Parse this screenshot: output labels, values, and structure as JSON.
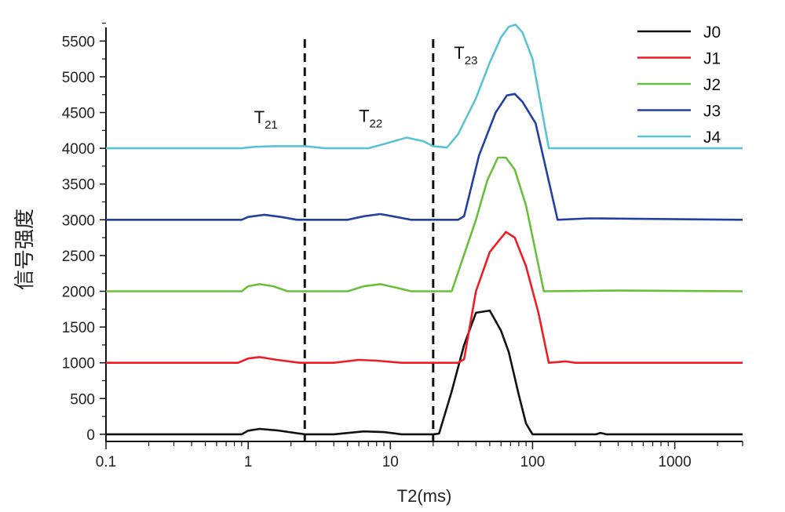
{
  "chart_data": {
    "type": "line",
    "xlabel": "T2(ms)",
    "ylabel": "信号强度",
    "xscale": "log",
    "xlim": [
      0.1,
      3000
    ],
    "ylim": [
      -100,
      5800
    ],
    "x_ticks": [
      0.1,
      1,
      10,
      100,
      1000
    ],
    "x_tick_labels": [
      "0.1",
      "1",
      "10",
      "100",
      "1000"
    ],
    "y_ticks": [
      0,
      500,
      1000,
      1500,
      2000,
      2500,
      3000,
      3500,
      4000,
      4500,
      5000,
      5500
    ],
    "y_tick_labels": [
      "0",
      "500",
      "1000",
      "1500",
      "2000",
      "2500",
      "3000",
      "3500",
      "4000",
      "4500",
      "5000",
      "5500"
    ],
    "grid": false,
    "legend_position": "top-right",
    "dividers": [
      2.5,
      20
    ],
    "annotations": [
      {
        "main": "T",
        "sub": "21",
        "x": 1.1,
        "y": 4350
      },
      {
        "main": "T",
        "sub": "22",
        "x": 6.0,
        "y": 4370
      },
      {
        "main": "T",
        "sub": "23",
        "x": 28,
        "y": 5250
      }
    ],
    "series": [
      {
        "name": "J0",
        "color": "#111111",
        "points": [
          [
            0.1,
            0
          ],
          [
            0.9,
            0
          ],
          [
            1.0,
            50
          ],
          [
            1.2,
            75
          ],
          [
            1.6,
            55
          ],
          [
            2.5,
            0
          ],
          [
            4,
            0
          ],
          [
            6.5,
            40
          ],
          [
            9,
            30
          ],
          [
            12,
            0
          ],
          [
            20,
            0
          ],
          [
            22,
            10
          ],
          [
            27,
            600
          ],
          [
            33,
            1250
          ],
          [
            40,
            1700
          ],
          [
            50,
            1730
          ],
          [
            60,
            1450
          ],
          [
            68,
            1150
          ],
          [
            80,
            550
          ],
          [
            90,
            150
          ],
          [
            100,
            0
          ],
          [
            280,
            0
          ],
          [
            300,
            20
          ],
          [
            330,
            0
          ],
          [
            3000,
            0
          ]
        ]
      },
      {
        "name": "J1",
        "color": "#ee1c25",
        "points": [
          [
            0.1,
            1000
          ],
          [
            0.85,
            1000
          ],
          [
            1.0,
            1060
          ],
          [
            1.2,
            1080
          ],
          [
            1.6,
            1040
          ],
          [
            2.3,
            1000
          ],
          [
            4,
            1000
          ],
          [
            6,
            1040
          ],
          [
            8,
            1030
          ],
          [
            12,
            1000
          ],
          [
            30,
            1000
          ],
          [
            33,
            1050
          ],
          [
            40,
            2000
          ],
          [
            50,
            2550
          ],
          [
            65,
            2830
          ],
          [
            75,
            2750
          ],
          [
            90,
            2350
          ],
          [
            110,
            1700
          ],
          [
            130,
            1000
          ],
          [
            170,
            1020
          ],
          [
            200,
            1000
          ],
          [
            3000,
            1000
          ]
        ]
      },
      {
        "name": "J2",
        "color": "#6abf3a",
        "points": [
          [
            0.1,
            2000
          ],
          [
            0.9,
            2000
          ],
          [
            1.0,
            2070
          ],
          [
            1.2,
            2100
          ],
          [
            1.5,
            2070
          ],
          [
            1.9,
            2000
          ],
          [
            5,
            2000
          ],
          [
            6.5,
            2070
          ],
          [
            8.5,
            2100
          ],
          [
            11,
            2050
          ],
          [
            14,
            2000
          ],
          [
            27,
            2000
          ],
          [
            40,
            3000
          ],
          [
            48,
            3550
          ],
          [
            57,
            3870
          ],
          [
            65,
            3870
          ],
          [
            75,
            3700
          ],
          [
            90,
            3200
          ],
          [
            120,
            2000
          ],
          [
            400,
            2010
          ],
          [
            3000,
            2000
          ]
        ]
      },
      {
        "name": "J3",
        "color": "#2340a0",
        "points": [
          [
            0.1,
            3000
          ],
          [
            0.9,
            3000
          ],
          [
            1.0,
            3040
          ],
          [
            1.3,
            3070
          ],
          [
            1.7,
            3040
          ],
          [
            2.2,
            3000
          ],
          [
            5,
            3000
          ],
          [
            6.5,
            3050
          ],
          [
            8.5,
            3080
          ],
          [
            11,
            3040
          ],
          [
            14,
            3000
          ],
          [
            30,
            3000
          ],
          [
            33,
            3050
          ],
          [
            42,
            3900
          ],
          [
            55,
            4500
          ],
          [
            66,
            4740
          ],
          [
            75,
            4760
          ],
          [
            85,
            4650
          ],
          [
            105,
            4350
          ],
          [
            150,
            3000
          ],
          [
            250,
            3020
          ],
          [
            3000,
            3000
          ]
        ]
      },
      {
        "name": "J4",
        "color": "#5bc4d4",
        "points": [
          [
            0.1,
            4000
          ],
          [
            0.9,
            4000
          ],
          [
            1.1,
            4020
          ],
          [
            1.5,
            4030
          ],
          [
            2.5,
            4030
          ],
          [
            3.5,
            4000
          ],
          [
            7,
            4000
          ],
          [
            9,
            4060
          ],
          [
            13,
            4150
          ],
          [
            17,
            4100
          ],
          [
            20,
            4030
          ],
          [
            25,
            4010
          ],
          [
            30,
            4200
          ],
          [
            40,
            4700
          ],
          [
            50,
            5200
          ],
          [
            60,
            5550
          ],
          [
            68,
            5700
          ],
          [
            76,
            5730
          ],
          [
            85,
            5620
          ],
          [
            100,
            5250
          ],
          [
            130,
            4000
          ],
          [
            3000,
            4000
          ]
        ]
      }
    ]
  }
}
